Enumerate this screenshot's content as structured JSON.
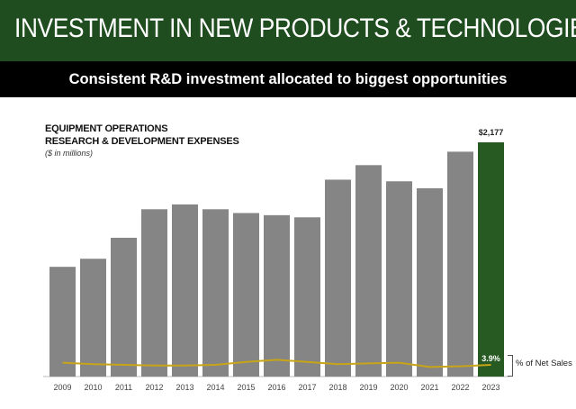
{
  "header": {
    "title": "INVESTMENT IN NEW PRODUCTS & TECHNOLOGIES",
    "subtitle": "Consistent R&D investment allocated to biggest opportunities"
  },
  "colors": {
    "banner": "#1f4d1f",
    "bar": "#858585",
    "highlight_bar": "#265a22",
    "pct_line": "#c8a418",
    "highlight_label_bg": "#265a22"
  },
  "chart_data": {
    "type": "bar",
    "title": "EQUIPMENT OPERATIONS",
    "subtitle": "RESEARCH & DEVELOPMENT EXPENSES",
    "units_note": "($ in millions)",
    "categories": [
      "2009",
      "2010",
      "2011",
      "2012",
      "2013",
      "2014",
      "2015",
      "2016",
      "2017",
      "2018",
      "2019",
      "2020",
      "2021",
      "2022",
      "2023"
    ],
    "series": [
      {
        "values": [
          1020,
          1095,
          1290,
          1555,
          1600,
          1555,
          1520,
          1500,
          1480,
          1830,
          1965,
          1815,
          1750,
          2090,
          2177
        ],
        "highlight_index": 14,
        "data_label": "$2,177"
      },
      {
        "name": "% of Net Sales",
        "values": [
          4.2,
          4.0,
          3.9,
          3.8,
          3.8,
          3.9,
          4.3,
          4.6,
          4.3,
          4.0,
          4.1,
          4.2,
          3.6,
          3.7,
          3.9
        ],
        "end_label": "3.9%"
      }
    ],
    "ylim": [
      0,
      2400
    ],
    "grid": false,
    "legend": "right of line"
  }
}
